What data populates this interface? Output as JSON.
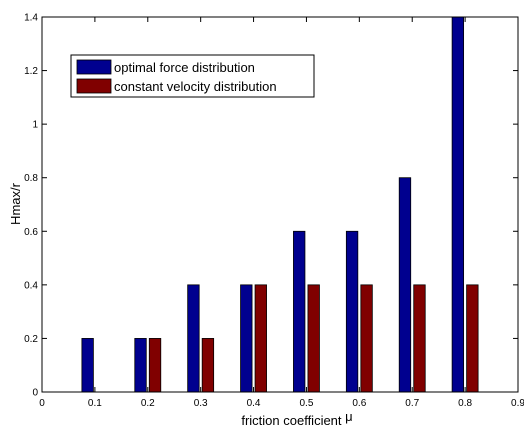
{
  "chart_data": {
    "type": "bar",
    "categories": [
      "0.1",
      "0.2",
      "0.3",
      "0.4",
      "0.5",
      "0.6",
      "0.7",
      "0.8"
    ],
    "x": [
      0.1,
      0.2,
      0.3,
      0.4,
      0.5,
      0.6,
      0.7,
      0.8
    ],
    "series": [
      {
        "name": "optimal force distribution",
        "color": "#00008F",
        "values": [
          0.2,
          0.2,
          0.4,
          0.4,
          0.6,
          0.6,
          0.8,
          1.4
        ]
      },
      {
        "name": "constant velocity distribution",
        "color": "#800000",
        "values": [
          0,
          0.2,
          0.2,
          0.4,
          0.4,
          0.4,
          0.4,
          0.4
        ]
      }
    ],
    "xlabel_text": "friction coefficient",
    "xlabel_symbol": "μ",
    "ylabel": "Hmax/r",
    "xlim": [
      0,
      0.9
    ],
    "ylim": [
      0,
      1.4
    ],
    "xticks": [
      "0",
      "0.1",
      "0.2",
      "0.3",
      "0.4",
      "0.5",
      "0.6",
      "0.7",
      "0.8",
      "0.9"
    ],
    "yticks": [
      "0",
      "0.2",
      "0.4",
      "0.6",
      "0.8",
      "1",
      "1.2",
      "1.4"
    ],
    "grid": false,
    "legend_position": "top-left"
  }
}
